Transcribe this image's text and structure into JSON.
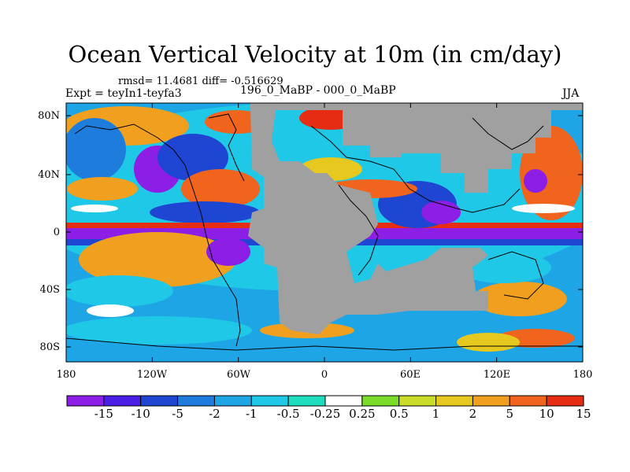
{
  "title": "Ocean Vertical Velocity at 10m (in cm/day)",
  "stats": "rmsd= 11.4681 diff= -0.516629",
  "expt": "Expt = teyIn1-teyfa3",
  "diff_label": "196_0_MaBP - 000_0_MaBP",
  "season": "JJA",
  "lat_ticks": [
    "80N",
    "40N",
    "0",
    "40S",
    "80S"
  ],
  "lon_ticks": [
    "180",
    "120W",
    "60W",
    "0",
    "60E",
    "120E",
    "180"
  ],
  "colorbar": {
    "labels": [
      "-15",
      "-10",
      "-5",
      "-2",
      "-1",
      "-0.5",
      "-0.25",
      "0.25",
      "0.5",
      "1",
      "2",
      "5",
      "10",
      "15"
    ],
    "colors": [
      "#8c1ee6",
      "#4b1ee6",
      "#1e46d2",
      "#1e7ddc",
      "#1ea5e6",
      "#1ec8e6",
      "#1edcbe",
      "#ffffff",
      "#78dc28",
      "#c8dc28",
      "#e6c81e",
      "#f0a01e",
      "#f0641e",
      "#e62d14"
    ]
  },
  "land_color": "#a0a0a0"
}
